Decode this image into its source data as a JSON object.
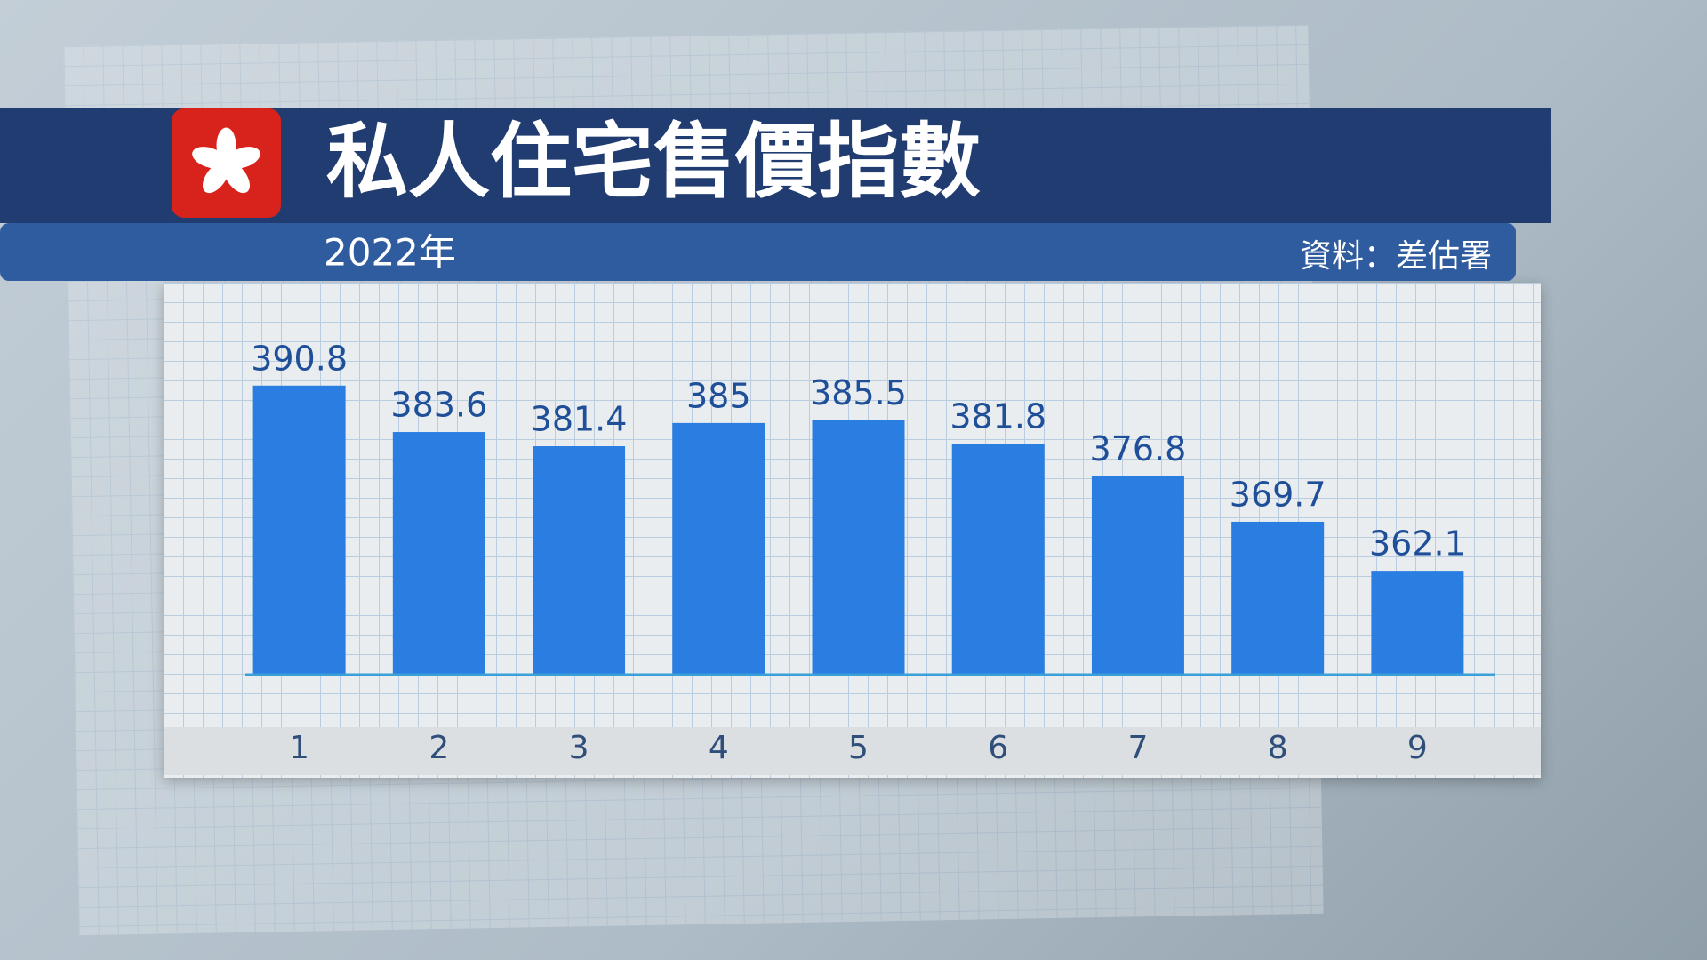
{
  "chart_data": {
    "type": "bar",
    "title": "私人住宅售價指數",
    "subtitle": "2022年",
    "source": "資料：差估署",
    "categories": [
      "1",
      "2",
      "3",
      "4",
      "5",
      "6",
      "7",
      "8",
      "9"
    ],
    "values": [
      390.8,
      383.6,
      381.4,
      385,
      385.5,
      381.8,
      376.8,
      369.7,
      362.1
    ],
    "color": "#2a7de1",
    "ylim": [
      346,
      400
    ]
  }
}
